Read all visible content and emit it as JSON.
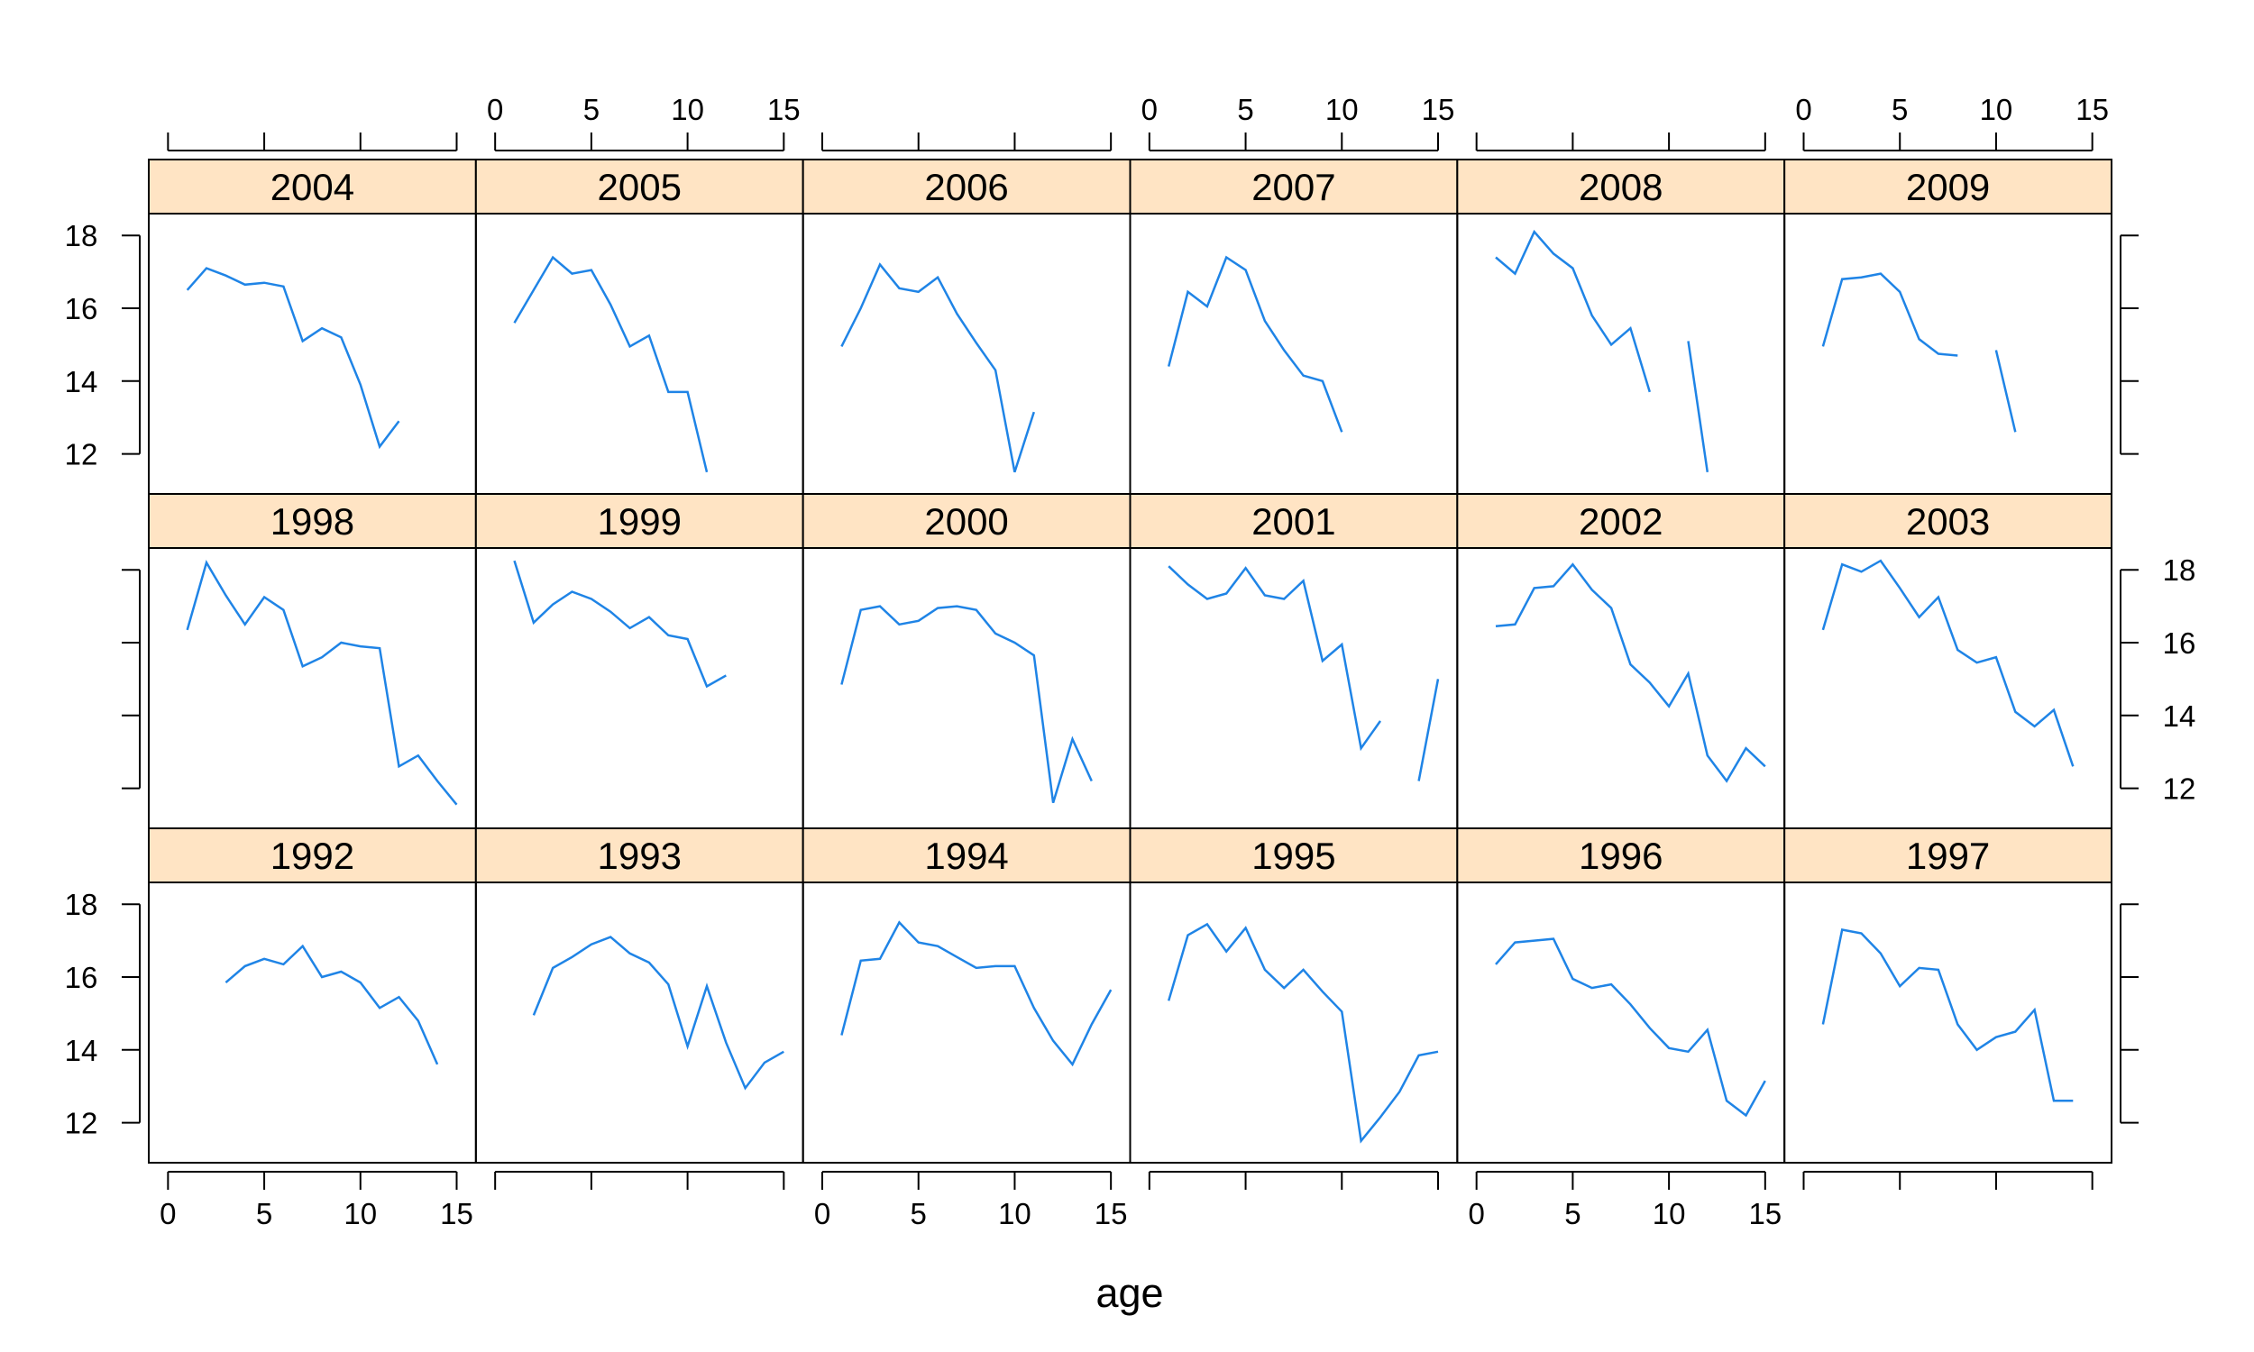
{
  "chart_data": {
    "type": "line",
    "layout": {
      "columns": 6,
      "rows": 3
    },
    "xlabel": "age",
    "ylabel": "",
    "xlim": [
      -1,
      16
    ],
    "ylim": [
      10.9,
      18.6
    ],
    "xticks": [
      0,
      5,
      10,
      15
    ],
    "yticks": [
      12,
      14,
      16,
      18
    ],
    "strip_color": "#ffe4c4",
    "line_color": "#1f84e6",
    "panels": [
      {
        "label": "2004",
        "x": [
          1,
          2,
          3,
          4,
          5,
          6,
          7,
          8,
          9,
          10,
          11,
          12
        ],
        "y": [
          16.5,
          17.1,
          16.9,
          16.65,
          16.7,
          16.6,
          15.1,
          15.45,
          15.2,
          13.9,
          12.2,
          12.9
        ]
      },
      {
        "label": "2005",
        "x": [
          1,
          2,
          3,
          4,
          5,
          6,
          7,
          8,
          9,
          10,
          11
        ],
        "y": [
          15.6,
          16.5,
          17.4,
          16.95,
          17.05,
          16.1,
          14.95,
          15.25,
          13.7,
          13.7,
          11.5
        ]
      },
      {
        "label": "2006",
        "x": [
          1,
          2,
          3,
          4,
          5,
          6,
          7,
          8,
          9,
          10,
          11
        ],
        "y": [
          14.95,
          16.0,
          17.2,
          16.55,
          16.45,
          16.85,
          15.85,
          15.05,
          14.3,
          11.5,
          13.15
        ]
      },
      {
        "label": "2007",
        "x": [
          1,
          2,
          3,
          4,
          5,
          6,
          7,
          8,
          9,
          10
        ],
        "y": [
          14.4,
          16.45,
          16.05,
          17.4,
          17.05,
          15.65,
          14.85,
          14.15,
          14.0,
          12.6
        ]
      },
      {
        "label": "2008",
        "x": [
          1,
          2,
          3,
          4,
          5,
          6,
          7,
          8,
          9,
          10,
          11,
          12
        ],
        "y": [
          17.4,
          16.95,
          18.1,
          17.5,
          17.1,
          15.8,
          15.0,
          15.45,
          13.7,
          null,
          15.1,
          11.5
        ]
      },
      {
        "label": "2009",
        "x": [
          1,
          2,
          3,
          4,
          5,
          6,
          7,
          8,
          9,
          10,
          11
        ],
        "y": [
          14.95,
          16.8,
          16.85,
          16.95,
          16.45,
          15.15,
          14.75,
          14.7,
          null,
          14.85,
          12.6
        ]
      },
      {
        "label": "1998",
        "x": [
          1,
          2,
          3,
          4,
          5,
          6,
          7,
          8,
          9,
          10,
          11,
          12,
          13,
          14,
          15
        ],
        "y": [
          16.35,
          18.2,
          17.3,
          16.5,
          17.25,
          16.9,
          15.35,
          15.6,
          16.0,
          15.9,
          15.85,
          12.6,
          12.9,
          12.2,
          11.55
        ]
      },
      {
        "label": "1999",
        "x": [
          1,
          2,
          3,
          4,
          5,
          6,
          7,
          8,
          9,
          10,
          11,
          12
        ],
        "y": [
          18.25,
          16.55,
          17.05,
          17.4,
          17.2,
          16.85,
          16.4,
          16.7,
          16.2,
          16.1,
          14.8,
          15.1
        ]
      },
      {
        "label": "2000",
        "x": [
          1,
          2,
          3,
          4,
          5,
          6,
          7,
          8,
          9,
          10,
          11,
          12,
          13,
          14
        ],
        "y": [
          14.85,
          16.9,
          17.0,
          16.5,
          16.6,
          16.95,
          17.0,
          16.9,
          16.25,
          16.0,
          15.65,
          11.6,
          13.35,
          12.2
        ]
      },
      {
        "label": "2001",
        "x": [
          1,
          2,
          3,
          4,
          5,
          6,
          7,
          8,
          9,
          10,
          11,
          12,
          13,
          14,
          15
        ],
        "y": [
          18.1,
          17.6,
          17.2,
          17.35,
          18.05,
          17.3,
          17.2,
          17.7,
          15.5,
          15.95,
          13.1,
          13.85,
          null,
          12.2,
          15.0
        ]
      },
      {
        "label": "2002",
        "x": [
          1,
          2,
          3,
          4,
          5,
          6,
          7,
          8,
          9,
          10,
          11,
          12,
          13,
          14,
          15
        ],
        "y": [
          16.45,
          16.5,
          17.5,
          17.55,
          18.15,
          17.45,
          16.95,
          15.4,
          14.9,
          14.25,
          15.15,
          12.9,
          12.2,
          13.1,
          12.6
        ]
      },
      {
        "label": "2003",
        "x": [
          1,
          2,
          3,
          4,
          5,
          6,
          7,
          8,
          9,
          10,
          11,
          12,
          13,
          14
        ],
        "y": [
          16.35,
          18.15,
          17.95,
          18.25,
          17.5,
          16.7,
          17.25,
          15.8,
          15.45,
          15.6,
          14.1,
          13.7,
          14.15,
          12.6
        ]
      },
      {
        "label": "1992",
        "x": [
          3,
          4,
          5,
          6,
          7,
          8,
          9,
          10,
          11,
          12,
          13,
          14
        ],
        "y": [
          15.85,
          16.3,
          16.5,
          16.35,
          16.85,
          16.0,
          16.15,
          15.85,
          15.15,
          15.45,
          14.8,
          13.6
        ]
      },
      {
        "label": "1993",
        "x": [
          2,
          3,
          4,
          5,
          6,
          7,
          8,
          9,
          10,
          11,
          12,
          13,
          14,
          15
        ],
        "y": [
          14.95,
          16.25,
          16.55,
          16.9,
          17.1,
          16.65,
          16.4,
          15.8,
          14.1,
          15.75,
          14.2,
          12.95,
          13.65,
          13.95
        ]
      },
      {
        "label": "1994",
        "x": [
          1,
          2,
          3,
          4,
          5,
          6,
          7,
          8,
          9,
          10,
          11,
          12,
          13,
          14,
          15
        ],
        "y": [
          14.4,
          16.45,
          16.5,
          17.5,
          16.95,
          16.85,
          16.55,
          16.25,
          16.3,
          16.3,
          15.15,
          14.25,
          13.6,
          14.7,
          15.65
        ]
      },
      {
        "label": "1995",
        "x": [
          1,
          2,
          3,
          4,
          5,
          6,
          7,
          8,
          9,
          10,
          11,
          12,
          13,
          14,
          15
        ],
        "y": [
          15.35,
          17.15,
          17.45,
          16.7,
          17.35,
          16.2,
          15.7,
          16.2,
          15.6,
          15.05,
          11.5,
          12.15,
          12.85,
          13.85,
          13.95
        ]
      },
      {
        "label": "1996",
        "x": [
          1,
          2,
          3,
          4,
          5,
          6,
          7,
          8,
          9,
          10,
          11,
          12,
          13,
          14,
          15
        ],
        "y": [
          16.35,
          16.95,
          17.0,
          17.05,
          15.95,
          15.7,
          15.8,
          15.25,
          14.6,
          14.05,
          13.95,
          14.55,
          12.6,
          12.2,
          13.15
        ]
      },
      {
        "label": "1997",
        "x": [
          1,
          2,
          3,
          4,
          5,
          6,
          7,
          8,
          9,
          10,
          11,
          12,
          13,
          14
        ],
        "y": [
          14.7,
          17.3,
          17.2,
          16.65,
          15.75,
          16.25,
          16.2,
          14.7,
          14.0,
          14.35,
          14.5,
          15.1,
          12.6,
          12.6
        ]
      }
    ]
  }
}
